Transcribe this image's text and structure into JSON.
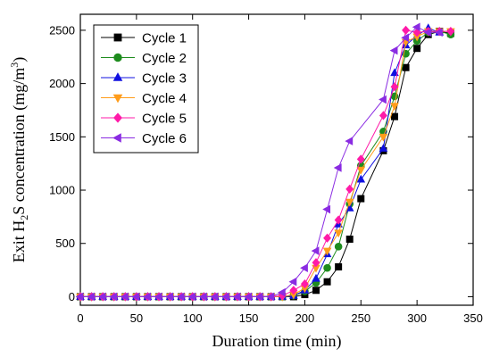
{
  "chart_data": {
    "type": "line",
    "title": "",
    "xlabel": "Duration time (min)",
    "ylabel": {
      "prefix": "Exit H",
      "sub": "2",
      "middle": "S concentration (mg/m",
      "sup": "3",
      "suffix": ")"
    },
    "xlim": [
      0,
      350
    ],
    "ylim": [
      -80,
      2650
    ],
    "xticks": [
      0,
      50,
      100,
      150,
      200,
      250,
      300,
      350
    ],
    "yticks": [
      0,
      500,
      1000,
      1500,
      2000,
      2500
    ],
    "grid": false,
    "legend_position": "top-left",
    "x": [
      0,
      10,
      20,
      30,
      40,
      50,
      60,
      70,
      80,
      90,
      100,
      110,
      120,
      130,
      140,
      150,
      160,
      170,
      180,
      190,
      200,
      210,
      220,
      230,
      240,
      250,
      260,
      270,
      280,
      290,
      300,
      310,
      320,
      330
    ],
    "series": [
      {
        "name": "Cycle 1",
        "marker": "square",
        "color": "#000000",
        "values": [
          0,
          0,
          0,
          0,
          0,
          0,
          0,
          0,
          0,
          0,
          0,
          0,
          0,
          0,
          0,
          0,
          0,
          0,
          0,
          0,
          20,
          60,
          140,
          280,
          540,
          920,
          null,
          1370,
          1690,
          2150,
          2330,
          2460,
          2490,
          2470
        ]
      },
      {
        "name": "Cycle 2",
        "marker": "circle",
        "color": "#1e8c1e",
        "values": [
          0,
          0,
          0,
          0,
          0,
          0,
          0,
          0,
          0,
          0,
          0,
          0,
          0,
          0,
          0,
          0,
          0,
          0,
          0,
          10,
          50,
          130,
          270,
          470,
          870,
          1230,
          null,
          1550,
          1880,
          2280,
          2400,
          2480,
          2490,
          2460
        ]
      },
      {
        "name": "Cycle 3",
        "marker": "triangle-up",
        "color": "#1010e0",
        "values": [
          0,
          0,
          0,
          0,
          0,
          0,
          0,
          0,
          0,
          0,
          0,
          0,
          0,
          0,
          0,
          0,
          0,
          0,
          0,
          10,
          60,
          170,
          400,
          680,
          830,
          1100,
          null,
          1390,
          2100,
          2360,
          2450,
          2520,
          2480,
          null
        ]
      },
      {
        "name": "Cycle 4",
        "marker": "triangle-down",
        "color": "#ff9c1a",
        "values": [
          0,
          0,
          0,
          0,
          0,
          0,
          0,
          0,
          0,
          0,
          0,
          0,
          0,
          0,
          0,
          0,
          0,
          0,
          0,
          20,
          80,
          270,
          430,
          600,
          890,
          1190,
          null,
          1500,
          1790,
          2390,
          2440,
          2490,
          2490,
          2490
        ]
      },
      {
        "name": "Cycle 5",
        "marker": "diamond",
        "color": "#ff1aa8",
        "values": [
          0,
          0,
          0,
          0,
          0,
          0,
          0,
          0,
          0,
          0,
          0,
          0,
          0,
          0,
          0,
          0,
          0,
          0,
          10,
          60,
          120,
          320,
          550,
          720,
          1010,
          1290,
          null,
          1700,
          1970,
          2500,
          2480,
          2490,
          2490,
          2490
        ]
      },
      {
        "name": "Cycle 6",
        "marker": "triangle-left",
        "color": "#8a2be2",
        "values": [
          0,
          0,
          0,
          0,
          0,
          0,
          0,
          0,
          0,
          0,
          0,
          0,
          0,
          0,
          0,
          0,
          0,
          0,
          40,
          140,
          270,
          430,
          820,
          1210,
          1460,
          null,
          null,
          1850,
          2310,
          2430,
          2530,
          2480,
          2480,
          null
        ]
      }
    ]
  }
}
